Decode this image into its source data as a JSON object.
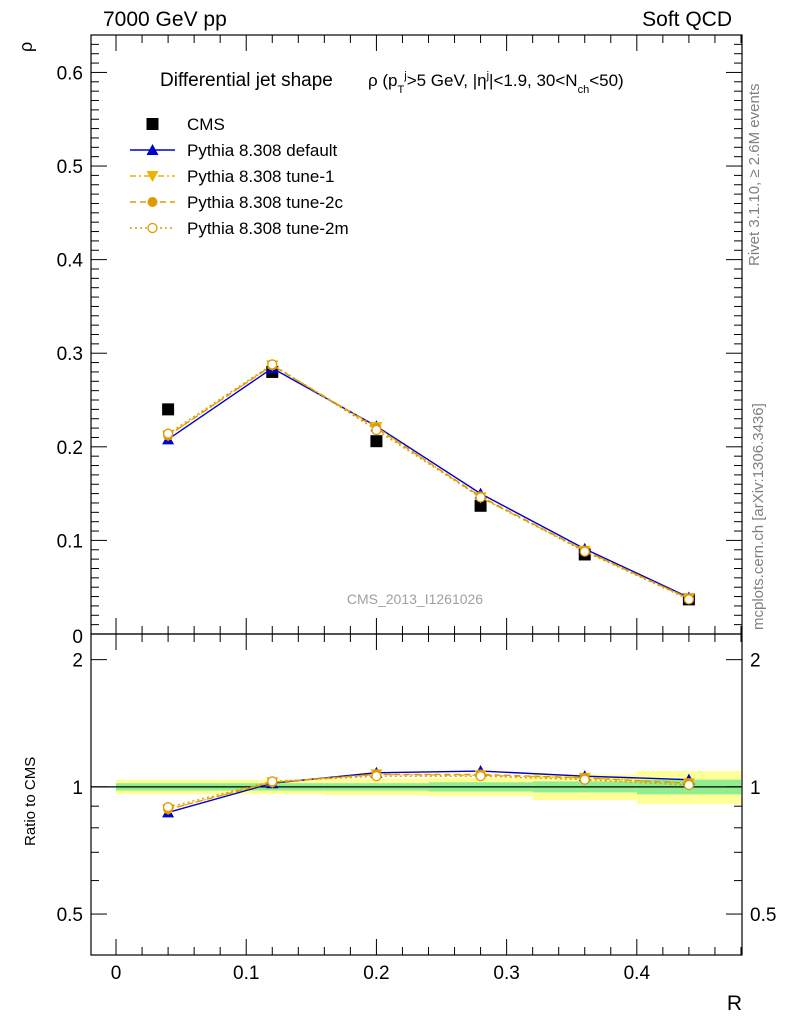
{
  "header": {
    "left": "7000 GeV pp",
    "right": "Soft QCD"
  },
  "side_text": {
    "rivet": "Rivet 3.1.10, ≥ 2.6M events",
    "mcplots": "mcplots.cern.ch [arXiv:1306.3436]"
  },
  "watermark": "CMS_2013_I1261026",
  "chart_data": [
    {
      "type": "line",
      "title": "Differential jet shape ρ (p_T^j>5 GeV, |η^j|<1.9, 30<N_ch<50)",
      "title_main": "Differential jet shape",
      "ylabel": "ρ",
      "xlabel": "R",
      "xlim": [
        -0.01,
        0.49
      ],
      "ylim": [
        0,
        0.64
      ],
      "yticks": [
        0.1,
        0.2,
        0.3,
        0.4,
        0.5,
        0.6
      ],
      "ytick_labels": [
        "0.1",
        "0.2",
        "0.3",
        "0.4",
        "0.5",
        "0.6"
      ],
      "bottom_tick_label": "0",
      "x": [
        0.04,
        0.12,
        0.2,
        0.28,
        0.36,
        0.44
      ],
      "legend_position": "top-left",
      "series": [
        {
          "name": "CMS",
          "style": "square",
          "color": "#000000",
          "values": [
            0.24,
            0.28,
            0.206,
            0.137,
            0.085,
            0.037
          ]
        },
        {
          "name": "Pythia 8.308 default",
          "style": "solid-triangle",
          "color": "#0000cc",
          "values": [
            0.208,
            0.284,
            0.222,
            0.15,
            0.091,
            0.039
          ]
        },
        {
          "name": "Pythia 8.308 tune-1",
          "style": "dashdot-downtriangle",
          "color": "#e8b400",
          "values": [
            0.212,
            0.287,
            0.221,
            0.146,
            0.089,
            0.038
          ]
        },
        {
          "name": "Pythia 8.308 tune-2c",
          "style": "dashed-circle",
          "color": "#e09a00",
          "values": [
            0.212,
            0.287,
            0.22,
            0.147,
            0.089,
            0.038
          ]
        },
        {
          "name": "Pythia 8.308 tune-2m",
          "style": "dotted-opencircle",
          "color": "#e09a00",
          "values": [
            0.214,
            0.288,
            0.218,
            0.146,
            0.088,
            0.037
          ]
        }
      ]
    },
    {
      "type": "line",
      "ylabel": "Ratio to CMS",
      "xlabel": "R",
      "xlim": [
        -0.01,
        0.49
      ],
      "ylim": [
        0.4,
        2.3
      ],
      "log_y": true,
      "yticks": [
        0.5,
        1,
        2
      ],
      "ytick_labels": [
        "0.5",
        "1",
        "2"
      ],
      "xticks": [
        0,
        0.1,
        0.2,
        0.3,
        0.4
      ],
      "xtick_labels": [
        "0",
        "0.1",
        "0.2",
        "0.3",
        "0.4"
      ],
      "x": [
        0.04,
        0.12,
        0.2,
        0.28,
        0.36,
        0.44
      ],
      "bands": {
        "bins": [
          [
            0.0,
            0.08
          ],
          [
            0.08,
            0.16
          ],
          [
            0.16,
            0.24
          ],
          [
            0.24,
            0.32
          ],
          [
            0.32,
            0.4
          ],
          [
            0.4,
            0.48
          ]
        ],
        "stat_half_width": [
          0.02,
          0.02,
          0.02,
          0.025,
          0.03,
          0.04
        ],
        "total_half_width": [
          0.04,
          0.04,
          0.045,
          0.05,
          0.07,
          0.09
        ],
        "stat_color": "#90ee90",
        "total_color": "#ffff99"
      },
      "series": [
        {
          "name": "Pythia 8.308 default",
          "color": "#0000cc",
          "values": [
            0.87,
            1.02,
            1.08,
            1.09,
            1.06,
            1.04
          ]
        },
        {
          "name": "Pythia 8.308 tune-1",
          "color": "#e8b400",
          "values": [
            0.885,
            1.025,
            1.07,
            1.065,
            1.05,
            1.02
          ]
        },
        {
          "name": "Pythia 8.308 tune-2c",
          "color": "#e09a00",
          "values": [
            0.885,
            1.025,
            1.07,
            1.07,
            1.05,
            1.02
          ]
        },
        {
          "name": "Pythia 8.308 tune-2m",
          "color": "#e09a00",
          "values": [
            0.895,
            1.03,
            1.06,
            1.06,
            1.04,
            1.01
          ]
        }
      ]
    }
  ]
}
